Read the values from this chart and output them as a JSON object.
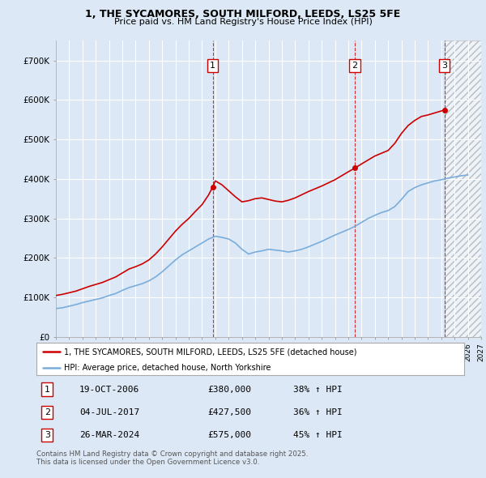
{
  "title1": "1, THE SYCAMORES, SOUTH MILFORD, LEEDS, LS25 5FE",
  "title2": "Price paid vs. HM Land Registry's House Price Index (HPI)",
  "red_line_label": "1, THE SYCAMORES, SOUTH MILFORD, LEEDS, LS25 5FE (detached house)",
  "blue_line_label": "HPI: Average price, detached house, North Yorkshire",
  "sales": [
    {
      "num": 1,
      "date": "19-OCT-2006",
      "price": 380000,
      "pct": "38%",
      "year": 2006.8
    },
    {
      "num": 2,
      "date": "04-JUL-2017",
      "price": 427500,
      "pct": "36%",
      "year": 2017.5
    },
    {
      "num": 3,
      "date": "26-MAR-2024",
      "price": 575000,
      "pct": "45%",
      "year": 2024.25
    }
  ],
  "footer": "Contains HM Land Registry data © Crown copyright and database right 2025.\nThis data is licensed under the Open Government Licence v3.0.",
  "bg_color": "#dce8f5",
  "plot_bg": "#dce8f5",
  "red_color": "#cc0000",
  "blue_color": "#7aaddb",
  "xmin": 1995,
  "xmax": 2027,
  "ymin": 0,
  "ymax": 750000,
  "future_start": 2024.25,
  "years_red": [
    1995,
    1995.5,
    1996,
    1996.5,
    1997,
    1997.5,
    1998,
    1998.5,
    1999,
    1999.5,
    2000,
    2000.5,
    2001,
    2001.5,
    2002,
    2002.5,
    2003,
    2003.5,
    2004,
    2004.5,
    2005,
    2005.5,
    2006,
    2006.5,
    2006.8,
    2007,
    2007.5,
    2008,
    2008.5,
    2009,
    2009.5,
    2010,
    2010.5,
    2011,
    2011.5,
    2012,
    2012.5,
    2013,
    2013.5,
    2014,
    2014.5,
    2015,
    2015.5,
    2016,
    2016.5,
    2017,
    2017.5,
    2018,
    2018.5,
    2019,
    2019.5,
    2020,
    2020.5,
    2021,
    2021.5,
    2022,
    2022.5,
    2023,
    2023.5,
    2024,
    2024.25
  ],
  "red_vals": [
    105000,
    108000,
    112000,
    116000,
    122000,
    128000,
    133000,
    138000,
    145000,
    152000,
    162000,
    172000,
    178000,
    185000,
    195000,
    210000,
    228000,
    248000,
    268000,
    285000,
    300000,
    318000,
    335000,
    360000,
    380000,
    395000,
    385000,
    370000,
    355000,
    342000,
    345000,
    350000,
    352000,
    348000,
    344000,
    342000,
    346000,
    352000,
    360000,
    368000,
    375000,
    382000,
    390000,
    398000,
    408000,
    418000,
    427500,
    438000,
    448000,
    458000,
    465000,
    472000,
    490000,
    515000,
    535000,
    548000,
    558000,
    562000,
    567000,
    572000,
    575000
  ],
  "years_blue": [
    1995,
    1995.5,
    1996,
    1996.5,
    1997,
    1997.5,
    1998,
    1998.5,
    1999,
    1999.5,
    2000,
    2000.5,
    2001,
    2001.5,
    2002,
    2002.5,
    2003,
    2003.5,
    2004,
    2004.5,
    2005,
    2005.5,
    2006,
    2006.5,
    2007,
    2007.5,
    2008,
    2008.5,
    2009,
    2009.5,
    2010,
    2010.5,
    2011,
    2011.5,
    2012,
    2012.5,
    2013,
    2013.5,
    2014,
    2014.5,
    2015,
    2015.5,
    2016,
    2016.5,
    2017,
    2017.5,
    2018,
    2018.5,
    2019,
    2019.5,
    2020,
    2020.5,
    2021,
    2021.5,
    2022,
    2022.5,
    2023,
    2023.5,
    2024,
    2024.5,
    2025,
    2025.5,
    2026
  ],
  "blue_vals": [
    72000,
    74000,
    78000,
    82000,
    87000,
    91000,
    95000,
    99000,
    105000,
    110000,
    118000,
    125000,
    130000,
    135000,
    142000,
    152000,
    165000,
    180000,
    195000,
    208000,
    218000,
    228000,
    238000,
    248000,
    255000,
    252000,
    248000,
    238000,
    222000,
    210000,
    215000,
    218000,
    222000,
    220000,
    218000,
    215000,
    218000,
    222000,
    228000,
    235000,
    242000,
    250000,
    258000,
    265000,
    272000,
    280000,
    290000,
    300000,
    308000,
    315000,
    320000,
    330000,
    348000,
    368000,
    378000,
    385000,
    390000,
    395000,
    398000,
    402000,
    405000,
    408000,
    410000
  ]
}
